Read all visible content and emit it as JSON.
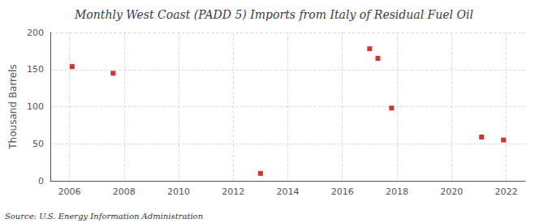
{
  "chart_data": {
    "type": "scatter",
    "title": "Monthly West Coast (PADD 5) Imports from Italy of Residual Fuel Oil",
    "ylabel": "Thousand Barrels",
    "source": "Source: U.S. Energy Information Administration",
    "x": [
      2006.1,
      2007.6,
      2013.0,
      2017.0,
      2017.3,
      2017.8,
      2021.1,
      2021.9
    ],
    "values": [
      154,
      145,
      10,
      178,
      165,
      98,
      59,
      55
    ],
    "color": "#cc0000",
    "marker": "square",
    "xlim": [
      2005.3,
      2022.7
    ],
    "xticks": [
      2006,
      2008,
      2010,
      2012,
      2014,
      2016,
      2018,
      2020,
      2022
    ],
    "ylim": [
      0,
      200
    ],
    "yticks": [
      0,
      50,
      100,
      150,
      200
    ],
    "grid": true
  }
}
